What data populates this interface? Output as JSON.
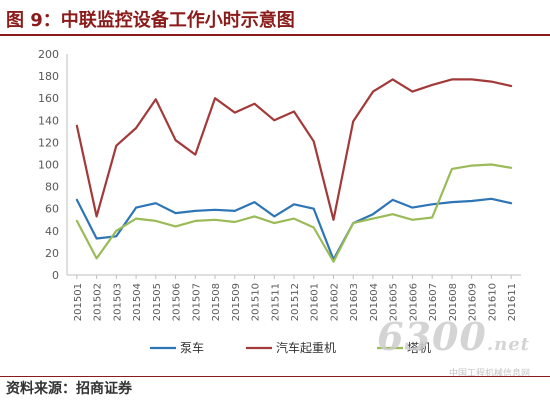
{
  "header": {
    "title": "图 9：中联监控设备工作小时示意图"
  },
  "footer": {
    "source": "资料来源：招商证券"
  },
  "watermark": {
    "logo": "6300",
    "logo_suffix": ".net",
    "subtitle": "中国工程机械信息网"
  },
  "chart_data": {
    "type": "line",
    "title": "",
    "xlabel": "",
    "ylabel": "",
    "ylim": [
      0,
      200
    ],
    "yticks": [
      0,
      20,
      40,
      60,
      80,
      100,
      120,
      140,
      160,
      180,
      200
    ],
    "grid": false,
    "legend_position": "bottom",
    "categories": [
      "201501",
      "201502",
      "201503",
      "201504",
      "201505",
      "201506",
      "201507",
      "201508",
      "201509",
      "201510",
      "201511",
      "201512",
      "201601",
      "201602",
      "201603",
      "201604",
      "201605",
      "201606",
      "201607",
      "201608",
      "201609",
      "201610",
      "201611"
    ],
    "series": [
      {
        "name": "泵车",
        "color": "#2e75b6",
        "values": [
          68,
          33,
          35,
          61,
          65,
          56,
          58,
          59,
          58,
          66,
          53,
          64,
          60,
          14,
          47,
          55,
          68,
          61,
          64,
          66,
          67,
          69,
          65
        ]
      },
      {
        "name": "汽车起重机",
        "color": "#a33a3a",
        "values": [
          135,
          53,
          117,
          133,
          159,
          122,
          109,
          160,
          147,
          155,
          140,
          148,
          121,
          50,
          139,
          166,
          177,
          166,
          172,
          177,
          177,
          175,
          171
        ]
      },
      {
        "name": "塔机",
        "color": "#9bbb59",
        "values": [
          49,
          15,
          40,
          51,
          49,
          44,
          49,
          50,
          48,
          53,
          47,
          51,
          43,
          12,
          47,
          51,
          55,
          50,
          52,
          96,
          99,
          100,
          97
        ]
      }
    ]
  }
}
